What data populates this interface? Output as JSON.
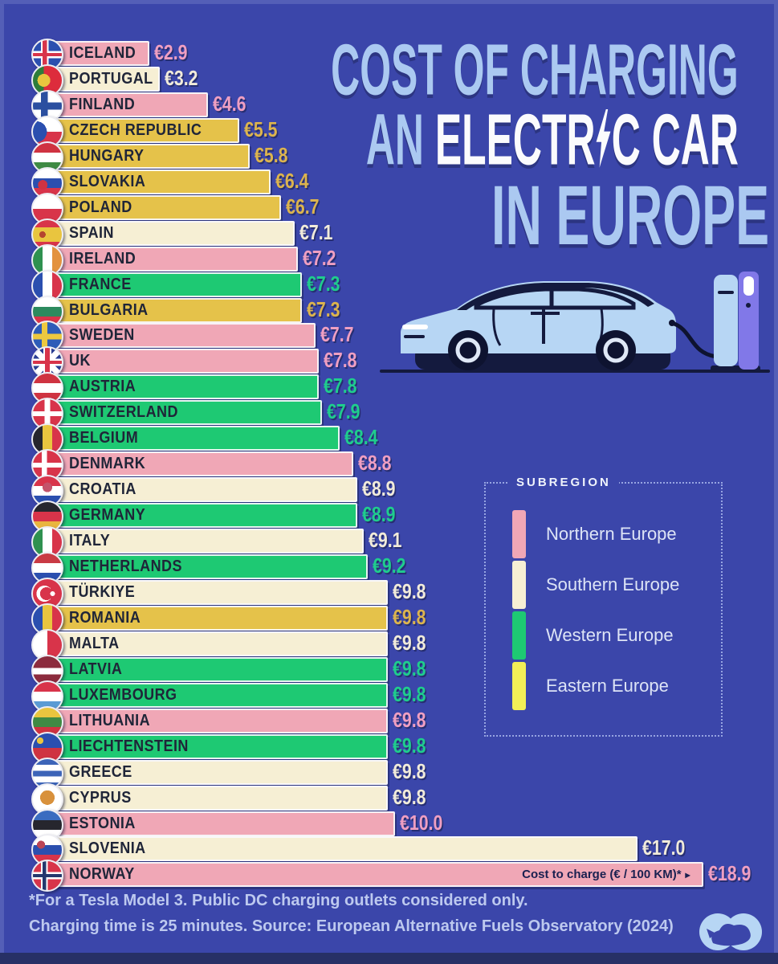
{
  "title": {
    "line1": "COST OF CHARGING",
    "line2_an": "AN ",
    "line2_electr": "ELECTR",
    "line2_c_car": "C CAR",
    "line3": "IN EUROPE"
  },
  "chart_data": {
    "type": "bar",
    "orientation": "horizontal",
    "title": "Cost of Charging an Electric Car in Europe",
    "xlabel": "Cost to charge (€ / 100 KM)*",
    "axis_arrow": "▸",
    "value_prefix": "€",
    "xlim": [
      0,
      19
    ],
    "categories": [
      "ICELAND",
      "PORTUGAL",
      "FINLAND",
      "CZECH REPUBLIC",
      "HUNGARY",
      "SLOVAKIA",
      "POLAND",
      "SPAIN",
      "IRELAND",
      "FRANCE",
      "BULGARIA",
      "SWEDEN",
      "UK",
      "AUSTRIA",
      "SWITZERLAND",
      "BELGIUM",
      "DENMARK",
      "CROATIA",
      "GERMANY",
      "ITALY",
      "NETHERLANDS",
      "TÜRKIYE",
      "ROMANIA",
      "MALTA",
      "LATVIA",
      "LUXEMBOURG",
      "LITHUANIA",
      "LIECHTENSTEIN",
      "GREECE",
      "CYPRUS",
      "ESTONIA",
      "SLOVENIA",
      "NORWAY"
    ],
    "values": [
      2.9,
      3.2,
      4.6,
      5.5,
      5.8,
      6.4,
      6.7,
      7.1,
      7.2,
      7.3,
      7.3,
      7.7,
      7.8,
      7.8,
      7.9,
      8.4,
      8.8,
      8.9,
      8.9,
      9.1,
      9.2,
      9.8,
      9.8,
      9.8,
      9.8,
      9.8,
      9.8,
      9.8,
      9.8,
      9.8,
      10.0,
      17.0,
      18.9
    ],
    "subregions": [
      "Northern Europe",
      "Southern Europe",
      "Northern Europe",
      "Eastern Europe",
      "Eastern Europe",
      "Eastern Europe",
      "Eastern Europe",
      "Southern Europe",
      "Northern Europe",
      "Western Europe",
      "Eastern Europe",
      "Northern Europe",
      "Northern Europe",
      "Western Europe",
      "Western Europe",
      "Western Europe",
      "Northern Europe",
      "Southern Europe",
      "Western Europe",
      "Southern Europe",
      "Western Europe",
      "Southern Europe",
      "Eastern Europe",
      "Southern Europe",
      "Western Europe",
      "Western Europe",
      "Northern Europe",
      "Western Europe",
      "Southern Europe",
      "Southern Europe",
      "Northern Europe",
      "Southern Europe",
      "Northern Europe"
    ]
  },
  "legend": {
    "title": "SUBREGION",
    "items": [
      {
        "label": "Northern Europe",
        "color": "#f0a7b6"
      },
      {
        "label": "Southern Europe",
        "color": "#f6efd4"
      },
      {
        "label": "Western Europe",
        "color": "#1ec973"
      },
      {
        "label": "Eastern Europe",
        "color": "#f2ef57"
      }
    ]
  },
  "colors": {
    "background": "#3b46aa",
    "subregion": {
      "Northern Europe": {
        "bar": "#f0a7b6",
        "value": "#ef9fc2"
      },
      "Southern Europe": {
        "bar": "#f6efd4",
        "value": "#f1ebda"
      },
      "Western Europe": {
        "bar": "#1ec973",
        "value": "#1fcd8d"
      },
      "Eastern Europe": {
        "bar": "#e5c24a",
        "value": "#dcb44e"
      }
    }
  },
  "footnote": {
    "line1": "*For a Tesla Model 3. Public DC charging outlets considered only.",
    "line2": "Charging time is 25 minutes. Source: European Alternative Fuels Observatory (2024)"
  },
  "flags": {
    "ICELAND": [
      [
        "h",
        "#2b4faf",
        0,
        100
      ],
      [
        "v",
        "#ffffff",
        28,
        54
      ],
      [
        "h",
        "#ffffff",
        37,
        63
      ],
      [
        "v",
        "#d8344a",
        34,
        48
      ],
      [
        "h",
        "#d8344a",
        44,
        56
      ]
    ],
    "PORTUGAL": [
      [
        "v",
        "#2e7d3a",
        0,
        38
      ],
      [
        "v",
        "#dd2c3c",
        38,
        100
      ],
      [
        "dot",
        "#e9c53f",
        38,
        50,
        8
      ]
    ],
    "FINLAND": [
      [
        "h",
        "#ffffff",
        0,
        100
      ],
      [
        "v",
        "#2b4fa0",
        28,
        52
      ],
      [
        "h",
        "#2b4fa0",
        38,
        62
      ]
    ],
    "CZECH REPUBLIC": [
      [
        "h",
        "#ffffff",
        0,
        50
      ],
      [
        "h",
        "#d8344a",
        50,
        100
      ],
      [
        "dot",
        "#2b4faf",
        12,
        50,
        13
      ]
    ],
    "HUNGARY": [
      [
        "h",
        "#cf3341",
        0,
        34
      ],
      [
        "h",
        "#ffffff",
        34,
        67
      ],
      [
        "h",
        "#3f8a44",
        67,
        100
      ]
    ],
    "SLOVAKIA": [
      [
        "h",
        "#ffffff",
        0,
        33
      ],
      [
        "h",
        "#2b4faf",
        33,
        66
      ],
      [
        "h",
        "#d8344a",
        66,
        100
      ],
      [
        "dot",
        "#cf3341",
        34,
        56,
        6
      ]
    ],
    "POLAND": [
      [
        "h",
        "#ffffff",
        0,
        50
      ],
      [
        "h",
        "#d8344a",
        50,
        100
      ]
    ],
    "SPAIN": [
      [
        "h",
        "#d8344a",
        0,
        25
      ],
      [
        "h",
        "#e9c53f",
        25,
        75
      ],
      [
        "h",
        "#d8344a",
        75,
        100
      ],
      [
        "dot",
        "#b5452f",
        33,
        50,
        4
      ]
    ],
    "IRELAND": [
      [
        "v",
        "#2f9150",
        0,
        33
      ],
      [
        "v",
        "#ffffff",
        33,
        66
      ],
      [
        "v",
        "#e3923f",
        66,
        100
      ]
    ],
    "FRANCE": [
      [
        "v",
        "#2b4faf",
        0,
        33
      ],
      [
        "v",
        "#ffffff",
        33,
        66
      ],
      [
        "v",
        "#d8344a",
        66,
        100
      ]
    ],
    "BULGARIA": [
      [
        "h",
        "#ffffff",
        0,
        33
      ],
      [
        "h",
        "#2c8a5e",
        33,
        66
      ],
      [
        "h",
        "#d8344a",
        66,
        100
      ]
    ],
    "SWEDEN": [
      [
        "h",
        "#2d5cb8",
        0,
        100
      ],
      [
        "v",
        "#edc83f",
        30,
        50
      ],
      [
        "h",
        "#edc83f",
        40,
        60
      ]
    ],
    "UK": [
      [
        "h",
        "#2b3f93",
        0,
        100
      ],
      [
        "d1",
        "#ffffff",
        43,
        57
      ],
      [
        "d2",
        "#ffffff",
        43,
        57
      ],
      [
        "v",
        "#ffffff",
        36,
        64
      ],
      [
        "h",
        "#ffffff",
        37,
        63
      ],
      [
        "v",
        "#d8344a",
        42,
        58
      ],
      [
        "h",
        "#d8344a",
        44,
        56
      ]
    ],
    "AUSTRIA": [
      [
        "h",
        "#cf3341",
        0,
        33
      ],
      [
        "h",
        "#ffffff",
        33,
        66
      ],
      [
        "h",
        "#cf3341",
        66,
        100
      ]
    ],
    "SWITZERLAND": [
      [
        "h",
        "#d8344a",
        0,
        100
      ],
      [
        "v",
        "#ffffff",
        40,
        60
      ],
      [
        "h",
        "#ffffff",
        41,
        59
      ]
    ],
    "BELGIUM": [
      [
        "v",
        "#26262e",
        0,
        33
      ],
      [
        "v",
        "#e9c53f",
        33,
        66
      ],
      [
        "v",
        "#d8344a",
        66,
        100
      ]
    ],
    "DENMARK": [
      [
        "h",
        "#d8344a",
        0,
        100
      ],
      [
        "v",
        "#ffffff",
        30,
        48
      ],
      [
        "h",
        "#ffffff",
        41,
        59
      ]
    ],
    "CROATIA": [
      [
        "h",
        "#d8344a",
        0,
        33
      ],
      [
        "h",
        "#ffffff",
        33,
        66
      ],
      [
        "h",
        "#2b4faf",
        66,
        100
      ],
      [
        "dot",
        "#c4536a",
        50,
        38,
        6
      ]
    ],
    "GERMANY": [
      [
        "h",
        "#26262e",
        0,
        33
      ],
      [
        "h",
        "#d8344a",
        33,
        66
      ],
      [
        "h",
        "#e9b53f",
        66,
        100
      ]
    ],
    "ITALY": [
      [
        "v",
        "#2f9150",
        0,
        33
      ],
      [
        "v",
        "#ffffff",
        33,
        66
      ],
      [
        "v",
        "#d8344a",
        66,
        100
      ]
    ],
    "NETHERLANDS": [
      [
        "h",
        "#c93a44",
        0,
        33
      ],
      [
        "h",
        "#ffffff",
        33,
        66
      ],
      [
        "h",
        "#2b4faf",
        66,
        100
      ]
    ],
    "TÜRKIYE": [
      [
        "h",
        "#d8344a",
        0,
        100
      ],
      [
        "dot",
        "#ffffff",
        40,
        50,
        10
      ],
      [
        "dot",
        "#d8344a",
        47,
        50,
        8
      ],
      [
        "dot",
        "#ffffff",
        68,
        50,
        3
      ]
    ],
    "ROMANIA": [
      [
        "v",
        "#2b4faf",
        0,
        33
      ],
      [
        "v",
        "#e9c53f",
        33,
        66
      ],
      [
        "v",
        "#d8344a",
        66,
        100
      ]
    ],
    "MALTA": [
      [
        "v",
        "#ffffff",
        0,
        50
      ],
      [
        "v",
        "#d8344a",
        50,
        100
      ]
    ],
    "LATVIA": [
      [
        "h",
        "#8c2b3d",
        0,
        40
      ],
      [
        "h",
        "#ffffff",
        40,
        62
      ],
      [
        "h",
        "#8c2b3d",
        62,
        100
      ]
    ],
    "LUXEMBOURG": [
      [
        "h",
        "#d8344a",
        0,
        33
      ],
      [
        "h",
        "#ffffff",
        33,
        66
      ],
      [
        "h",
        "#5b9bd4",
        66,
        100
      ]
    ],
    "LITHUANIA": [
      [
        "h",
        "#e9c53f",
        0,
        33
      ],
      [
        "h",
        "#3f8a44",
        33,
        66
      ],
      [
        "h",
        "#cf3341",
        66,
        100
      ]
    ],
    "LIECHTENSTEIN": [
      [
        "h",
        "#2b4faf",
        0,
        50
      ],
      [
        "h",
        "#cf3341",
        50,
        100
      ],
      [
        "dot",
        "#e9c53f",
        25,
        25,
        4
      ]
    ],
    "GREECE": [
      [
        "h",
        "#3c64b8",
        0,
        20
      ],
      [
        "h",
        "#ffffff",
        20,
        40
      ],
      [
        "h",
        "#3c64b8",
        40,
        60
      ],
      [
        "h",
        "#ffffff",
        60,
        80
      ],
      [
        "h",
        "#3c64b8",
        80,
        100
      ]
    ],
    "CYPRUS": [
      [
        "h",
        "#ffffff",
        0,
        100
      ],
      [
        "dot",
        "#d8913c",
        50,
        44,
        9
      ]
    ],
    "ESTONIA": [
      [
        "h",
        "#3a6cc0",
        0,
        33
      ],
      [
        "h",
        "#26262e",
        33,
        66
      ],
      [
        "h",
        "#ffffff",
        66,
        100
      ]
    ],
    "SLOVENIA": [
      [
        "h",
        "#ffffff",
        0,
        33
      ],
      [
        "h",
        "#2b4faf",
        33,
        66
      ],
      [
        "h",
        "#d8344a",
        66,
        100
      ],
      [
        "dot",
        "#bb4455",
        28,
        32,
        5
      ]
    ],
    "NORWAY": [
      [
        "h",
        "#d8344a",
        0,
        100
      ],
      [
        "v",
        "#ffffff",
        28,
        52
      ],
      [
        "h",
        "#ffffff",
        38,
        62
      ],
      [
        "v",
        "#24386e",
        34,
        46
      ],
      [
        "h",
        "#24386e",
        44,
        56
      ]
    ]
  }
}
